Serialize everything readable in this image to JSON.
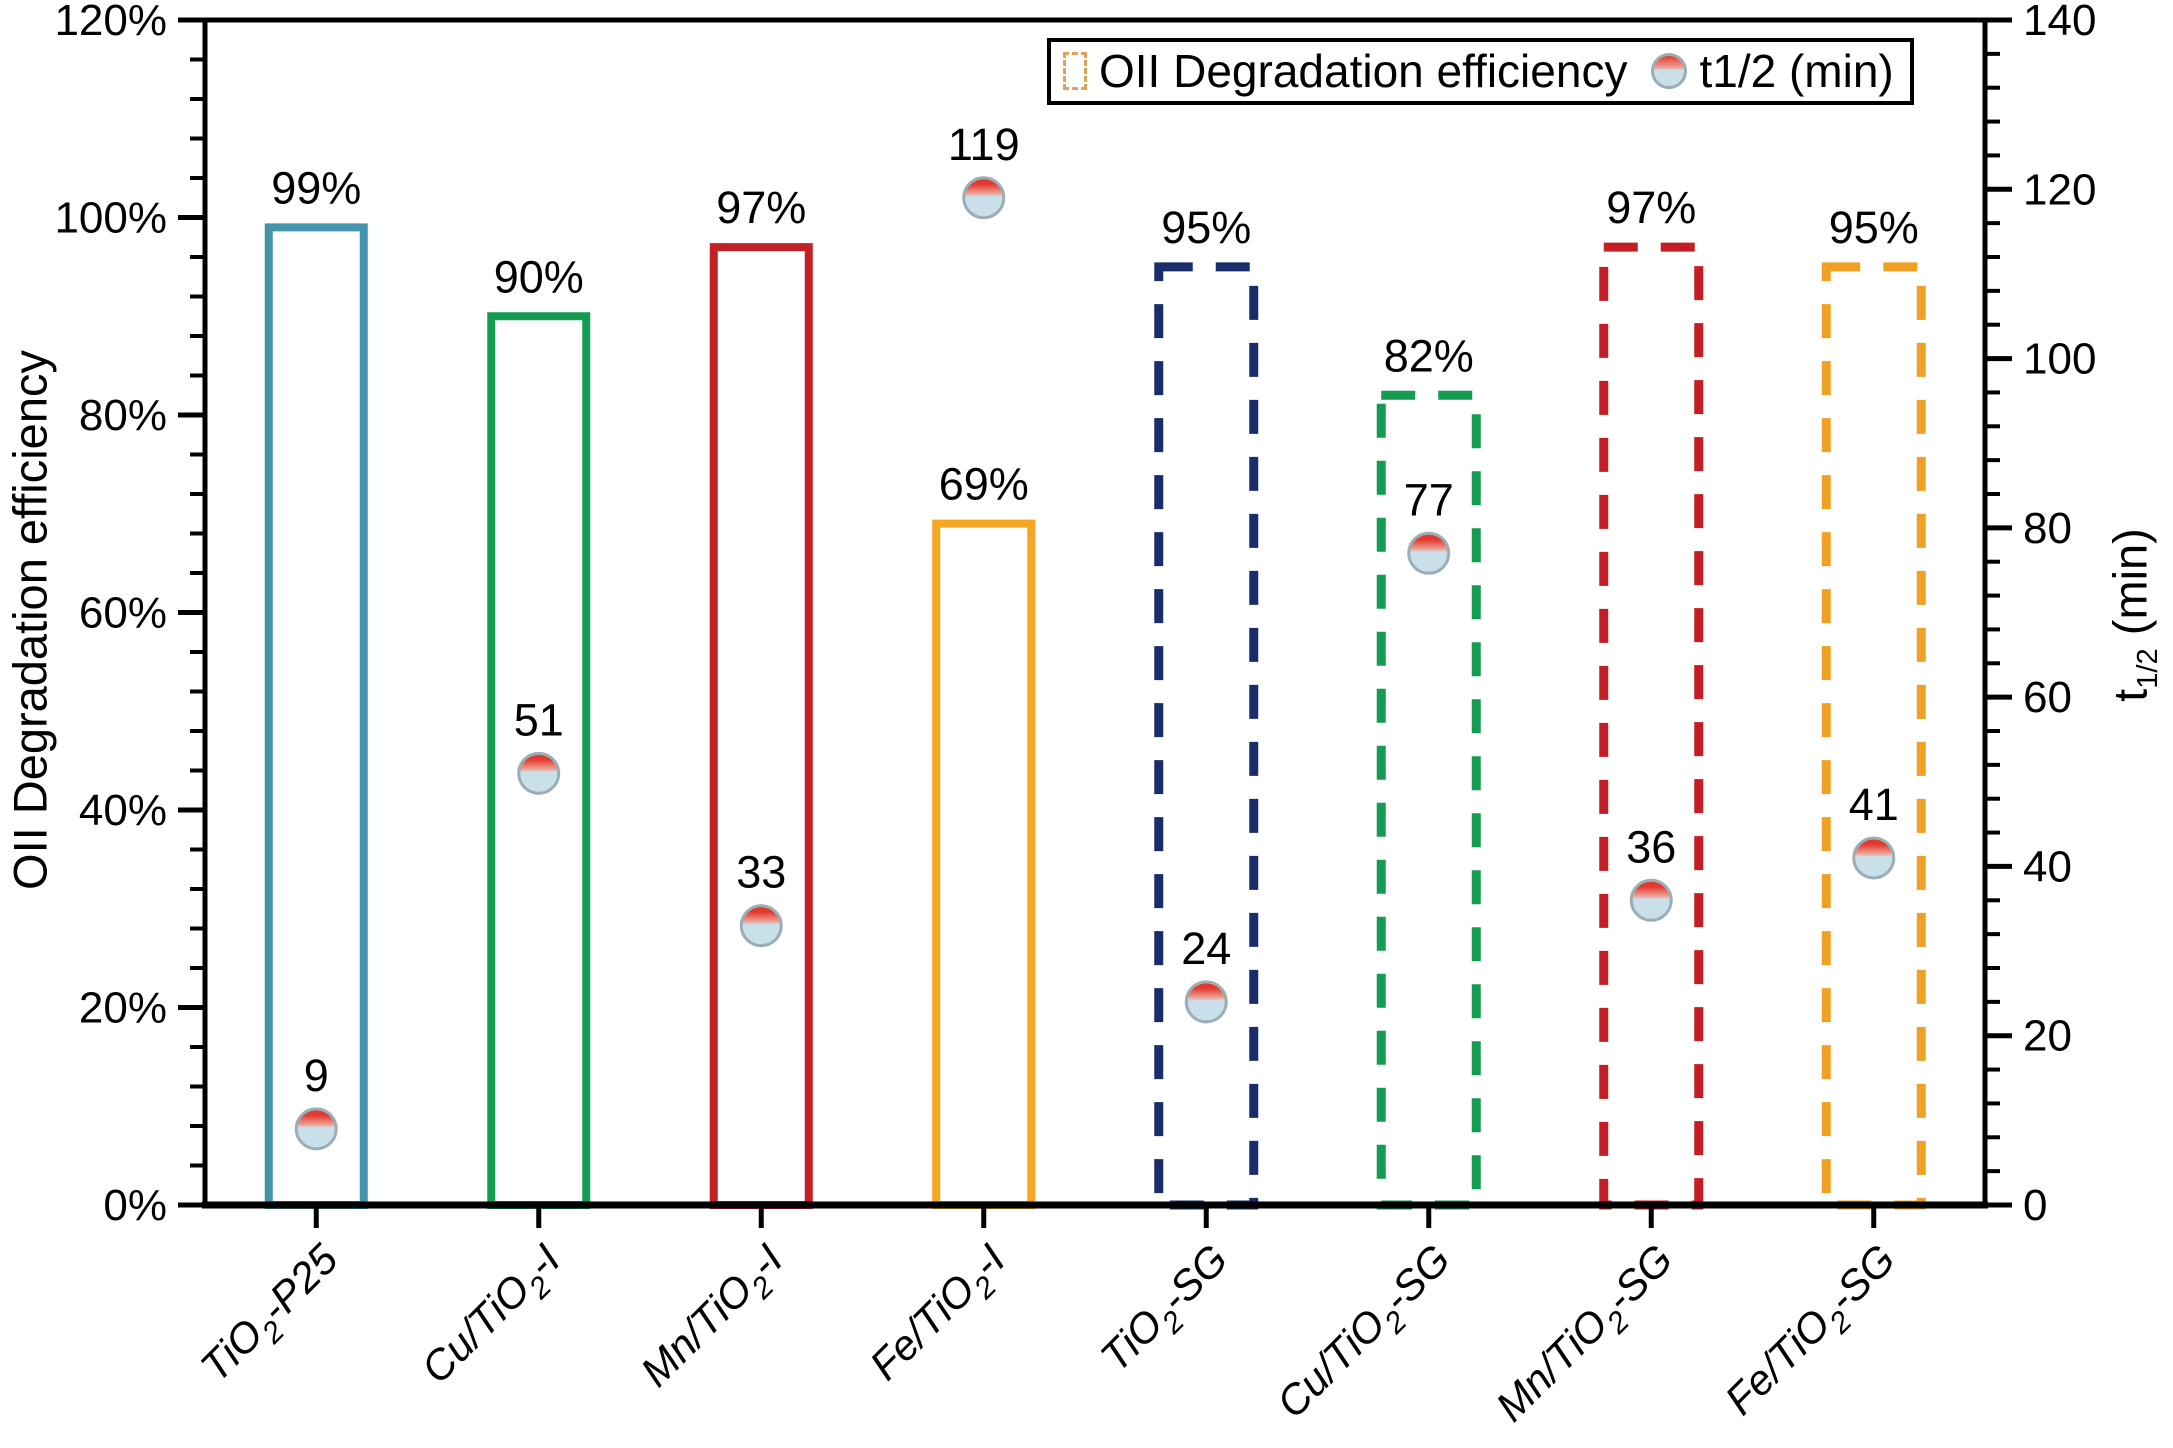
{
  "chart_data": {
    "type": "bar",
    "title": "",
    "categories": [
      "TiO2-P25",
      "Cu/TiO2-I",
      "Mn/TiO2-I",
      "Fe/TiO2-I",
      "TiO2-SG",
      "Cu/TiO2-SG",
      "Mn/TiO2-SG",
      "Fe/TiO2-SG"
    ],
    "category_label_parts": [
      {
        "pre": "TiO",
        "sub": "2",
        "post": "-P25"
      },
      {
        "pre": "Cu/TiO",
        "sub": "2",
        "post": "-I"
      },
      {
        "pre": "Mn/TiO",
        "sub": "2",
        "post": "-I"
      },
      {
        "pre": "Fe/TiO",
        "sub": "2",
        "post": "-I"
      },
      {
        "pre": "TiO",
        "sub": "2",
        "post": "-SG"
      },
      {
        "pre": "Cu/TiO",
        "sub": "2",
        "post": "-SG"
      },
      {
        "pre": "Mn/TiO",
        "sub": "2",
        "post": "-SG"
      },
      {
        "pre": "Fe/TiO",
        "sub": "2",
        "post": "-SG"
      }
    ],
    "series": [
      {
        "name": "OII Degradation efficiency",
        "type": "bar",
        "axis": "left",
        "values": [
          99,
          90,
          97,
          69,
          95,
          82,
          97,
          95
        ],
        "value_labels": [
          "99%",
          "90%",
          "97%",
          "69%",
          "95%",
          "82%",
          "97%",
          "95%"
        ],
        "bar_colors": [
          "#4593ad",
          "#149c52",
          "#c42127",
          "#f5a623",
          "#1b2c6b",
          "#149c52",
          "#c41d23",
          "#efa125"
        ],
        "bar_line_styles": [
          "solid",
          "solid",
          "solid",
          "solid",
          "dashed",
          "dashed",
          "dashed",
          "dashed"
        ]
      },
      {
        "name": "t1/2 (min)",
        "type": "scatter",
        "axis": "right",
        "values": [
          9,
          51,
          33,
          119,
          24,
          77,
          36,
          41
        ],
        "value_labels": [
          "9",
          "51",
          "33",
          "119",
          "24",
          "77",
          "36",
          "41"
        ]
      }
    ],
    "left_axis": {
      "label": "OII Degradation efficiency",
      "min": 0,
      "max": 120,
      "major_step": 20,
      "minor_step": 4,
      "tick_values": [
        0,
        20,
        40,
        60,
        80,
        100,
        120
      ],
      "tick_labels": [
        "0%",
        "20%",
        "40%",
        "60%",
        "80%",
        "100%",
        "120%"
      ]
    },
    "right_axis": {
      "label_main": "t",
      "label_sub": "1/2",
      "label_rest": " (min)",
      "min": 0,
      "max": 140,
      "major_step": 20,
      "minor_step": 4,
      "tick_values": [
        0,
        20,
        40,
        60,
        80,
        100,
        120,
        140
      ],
      "tick_labels": [
        "0",
        "20",
        "40",
        "60",
        "80",
        "100",
        "120",
        "140"
      ]
    },
    "marker": {
      "top": "#e23a2d",
      "fade": "#eea49b",
      "bottom": "#c9dfe9",
      "border": "#9badb5"
    },
    "legend": {
      "bar_label": "OII Degradation efficiency",
      "scatter_label": "t1/2 (min)",
      "patch_color": "#e2a158",
      "position": "top-right"
    },
    "grid": false,
    "background": "#ffffff",
    "axis_color": "#000000"
  }
}
